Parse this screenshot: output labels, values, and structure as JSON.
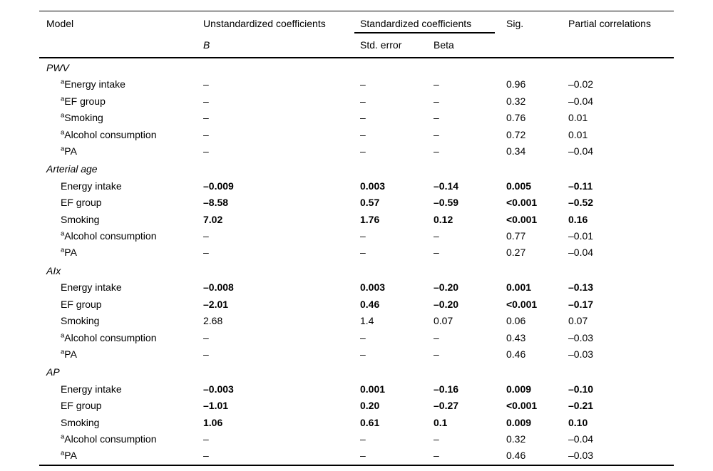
{
  "table": {
    "headers": {
      "model": "Model",
      "unstandardized": "Unstandardized coefficients",
      "unstandardized_sub": "B",
      "standardized": "Standardized coefficients",
      "std_error": "Std. error",
      "beta": "Beta",
      "sig": "Sig.",
      "partial": "Partial correlations"
    },
    "sections": [
      {
        "title": "PWV",
        "rows": [
          {
            "sup": "a",
            "label": "Energy intake",
            "b": "–",
            "std_error": "–",
            "beta": "–",
            "sig": "0.96",
            "partial": "–0.02",
            "bold": false
          },
          {
            "sup": "a",
            "label": "EF group",
            "b": "–",
            "std_error": "–",
            "beta": "–",
            "sig": "0.32",
            "partial": "–0.04",
            "bold": false
          },
          {
            "sup": "a",
            "label": "Smoking",
            "b": "–",
            "std_error": "–",
            "beta": "–",
            "sig": "0.76",
            "partial": "0.01",
            "bold": false
          },
          {
            "sup": "a",
            "label": "Alcohol consumption",
            "b": "–",
            "std_error": "–",
            "beta": "–",
            "sig": "0.72",
            "partial": "0.01",
            "bold": false
          },
          {
            "sup": "a",
            "label": "PA",
            "b": "–",
            "std_error": "–",
            "beta": "–",
            "sig": "0.34",
            "partial": "–0.04",
            "bold": false
          }
        ]
      },
      {
        "title": "Arterial age",
        "rows": [
          {
            "sup": "",
            "label": "Energy intake",
            "b": "–0.009",
            "std_error": "0.003",
            "beta": "–0.14",
            "sig": "0.005",
            "partial": "–0.11",
            "bold": true
          },
          {
            "sup": "",
            "label": "EF group",
            "b": "–8.58",
            "std_error": "0.57",
            "beta": "–0.59",
            "sig": "<0.001",
            "partial": "–0.52",
            "bold": true
          },
          {
            "sup": "",
            "label": "Smoking",
            "b": "7.02",
            "std_error": "1.76",
            "beta": "0.12",
            "sig": "<0.001",
            "partial": "0.16",
            "bold": true
          },
          {
            "sup": "a",
            "label": "Alcohol consumption",
            "b": "–",
            "std_error": "–",
            "beta": "–",
            "sig": "0.77",
            "partial": "–0.01",
            "bold": false
          },
          {
            "sup": "a",
            "label": "PA",
            "b": "–",
            "std_error": "–",
            "beta": "–",
            "sig": "0.27",
            "partial": "–0.04",
            "bold": false
          }
        ]
      },
      {
        "title": "AIx",
        "rows": [
          {
            "sup": "",
            "label": "Energy intake",
            "b": "–0.008",
            "std_error": "0.003",
            "beta": "–0.20",
            "sig": "0.001",
            "partial": "–0.13",
            "bold": true
          },
          {
            "sup": "",
            "label": "EF group",
            "b": "–2.01",
            "std_error": "0.46",
            "beta": "–0.20",
            "sig": "<0.001",
            "partial": "–0.17",
            "bold": true
          },
          {
            "sup": "",
            "label": "Smoking",
            "b": "2.68",
            "std_error": "1.4",
            "beta": "0.07",
            "sig": "0.06",
            "partial": "0.07",
            "bold": false
          },
          {
            "sup": "a",
            "label": "Alcohol consumption",
            "b": "–",
            "std_error": "–",
            "beta": "–",
            "sig": "0.43",
            "partial": "–0.03",
            "bold": false
          },
          {
            "sup": "a",
            "label": "PA",
            "b": "–",
            "std_error": "–",
            "beta": "–",
            "sig": "0.46",
            "partial": "–0.03",
            "bold": false
          }
        ]
      },
      {
        "title": "AP",
        "rows": [
          {
            "sup": "",
            "label": "Energy intake",
            "b": "–0.003",
            "std_error": "0.001",
            "beta": "–0.16",
            "sig": "0.009",
            "partial": "–0.10",
            "bold": true
          },
          {
            "sup": "",
            "label": "EF group",
            "b": "–1.01",
            "std_error": "0.20",
            "beta": "–0.27",
            "sig": "<0.001",
            "partial": "–0.21",
            "bold": true
          },
          {
            "sup": "",
            "label": "Smoking",
            "b": "1.06",
            "std_error": "0.61",
            "beta": "0.1",
            "sig": "0.009",
            "partial": "0.10",
            "bold": true
          },
          {
            "sup": "a",
            "label": "Alcohol consumption",
            "b": "–",
            "std_error": "–",
            "beta": "–",
            "sig": "0.32",
            "partial": "–0.04",
            "bold": false
          },
          {
            "sup": "a",
            "label": "PA",
            "b": "–",
            "std_error": "–",
            "beta": "–",
            "sig": "0.46",
            "partial": "–0.03",
            "bold": false
          }
        ]
      }
    ]
  }
}
